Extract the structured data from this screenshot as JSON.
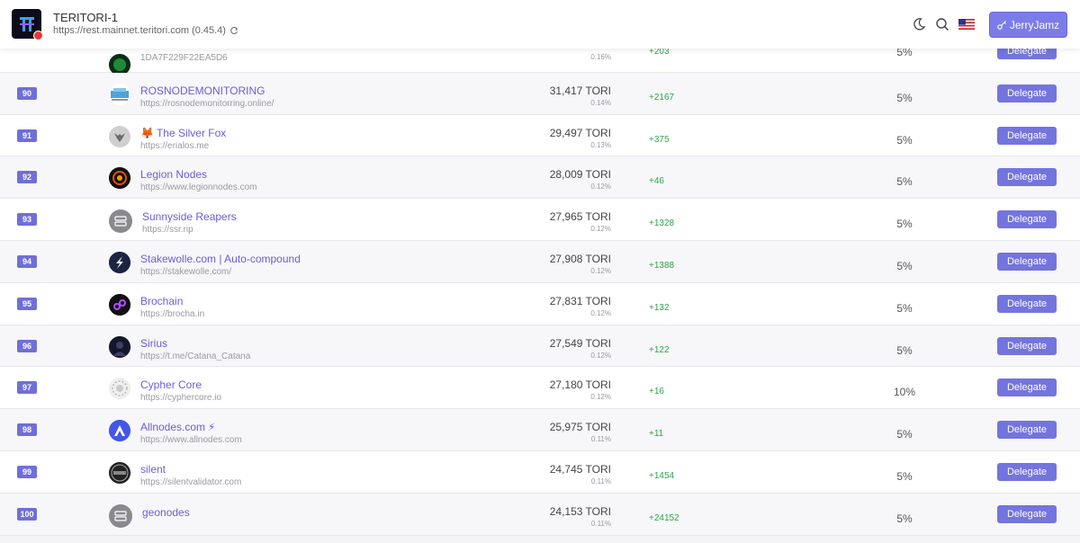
{
  "header": {
    "chain_name": "TERITORI-1",
    "chain_url": "https://rest.mainnet.teritori.com (0.45.4)",
    "user_label": "JerryJamz"
  },
  "rows": [
    {
      "rank": "",
      "name": "",
      "url": "1DA7F229F22EA5D6",
      "stake": "",
      "pct": "0.16%",
      "change": "+203",
      "commission": "5%",
      "action": "Delegate"
    },
    {
      "rank": "90",
      "name": "ROSNODEMONITORING",
      "url": "https://rosnodemonitorring.online/",
      "stake": "31,417 TORI",
      "pct": "0.14%",
      "change": "+2167",
      "commission": "5%",
      "action": "Delegate"
    },
    {
      "rank": "91",
      "name": "The Silver Fox",
      "url": "https://erialos.me",
      "stake": "29,497 TORI",
      "pct": "0.13%",
      "change": "+375",
      "commission": "5%",
      "action": "Delegate"
    },
    {
      "rank": "92",
      "name": "Legion Nodes",
      "url": "https://www.legionnodes.com",
      "stake": "28,009 TORI",
      "pct": "0.12%",
      "change": "+46",
      "commission": "5%",
      "action": "Delegate"
    },
    {
      "rank": "93",
      "name": "Sunnyside Reapers",
      "url": "https://ssr.rip",
      "stake": "27,965 TORI",
      "pct": "0.12%",
      "change": "+1328",
      "commission": "5%",
      "action": "Delegate"
    },
    {
      "rank": "94",
      "name": "Stakewolle.com | Auto-compound",
      "url": "https://stakewolle.com/",
      "stake": "27,908 TORI",
      "pct": "0.12%",
      "change": "+1388",
      "commission": "5%",
      "action": "Delegate"
    },
    {
      "rank": "95",
      "name": "Brochain",
      "url": "https://brocha.in",
      "stake": "27,831 TORI",
      "pct": "0.12%",
      "change": "+132",
      "commission": "5%",
      "action": "Delegate"
    },
    {
      "rank": "96",
      "name": "Sirius",
      "url": "https://t.me/Catana_Catana",
      "stake": "27,549 TORI",
      "pct": "0.12%",
      "change": "+122",
      "commission": "5%",
      "action": "Delegate"
    },
    {
      "rank": "97",
      "name": "Cypher Core",
      "url": "https://cyphercore.io",
      "stake": "27,180 TORI",
      "pct": "0.12%",
      "change": "+16",
      "commission": "10%",
      "action": "Delegate"
    },
    {
      "rank": "98",
      "name": "Allnodes.com",
      "url": "https://www.allnodes.com",
      "stake": "25,975 TORI",
      "pct": "0.11%",
      "change": "+11",
      "commission": "5%",
      "action": "Delegate"
    },
    {
      "rank": "99",
      "name": "silent",
      "url": "https://silentvalidator.com",
      "stake": "24,745 TORI",
      "pct": "0.11%",
      "change": "+1454",
      "commission": "5%",
      "action": "Delegate"
    },
    {
      "rank": "100",
      "name": "geonodes",
      "url": "",
      "stake": "24,153 TORI",
      "pct": "0.11%",
      "change": "+24152",
      "commission": "5%",
      "action": "Delegate"
    }
  ],
  "icons": {
    "theme_toggle": "moon-icon",
    "search": "search-icon",
    "language": "us-flag-icon",
    "refresh": "refresh-icon",
    "user": "key-icon",
    "fox_emoji": "🦊",
    "bolt_emoji": "⚡"
  }
}
